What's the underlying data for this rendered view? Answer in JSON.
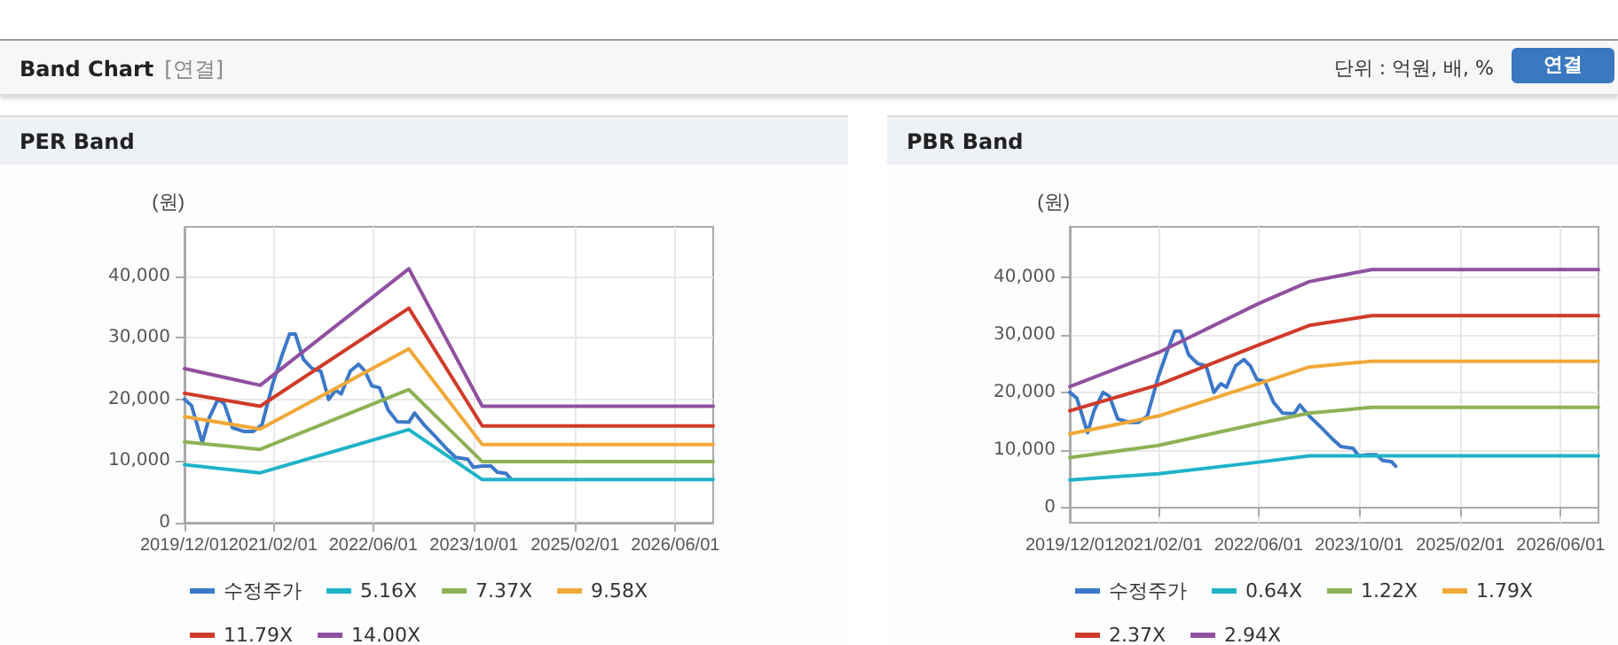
{
  "chart_data": [
    {
      "type": "line",
      "title": "PER Band",
      "ylabel": "(원)",
      "annotations": [
        "Band Chart",
        "[연결]",
        "단위 : 억원, 배, %",
        "연결"
      ],
      "xlim": [
        "2019-12-01",
        "2026-12-01"
      ],
      "xticks": [
        {
          "value": "2019-12-01",
          "label": "2019/12/01"
        },
        {
          "value": "2021-02-01",
          "label": "2021/02/01"
        },
        {
          "value": "2022-06-01",
          "label": "2022/06/01"
        },
        {
          "value": "2023-10-01",
          "label": "2023/10/01"
        },
        {
          "value": "2025-02-01",
          "label": "2025/02/01"
        },
        {
          "value": "2026-06-01",
          "label": "2026/06/01"
        }
      ],
      "ylim": [
        0,
        48000
      ],
      "yticks": [
        {
          "value": 0,
          "label": "0"
        },
        {
          "value": 10000,
          "label": "10,000"
        },
        {
          "value": 20000,
          "label": "20,000"
        },
        {
          "value": 30000,
          "label": "30,000"
        },
        {
          "value": 40000,
          "label": "40,000"
        }
      ],
      "grid": true,
      "legend": "bottom",
      "marker": "none",
      "line_style": "solid",
      "series": [
        {
          "name": "수정주가",
          "color": "#3c78c8",
          "x": [
            "2019-12-01",
            "2020-01-04",
            "2020-02-25",
            "2020-03-28",
            "2020-05-10",
            "2020-06-10",
            "2020-07-20",
            "2020-09-15",
            "2020-10-28",
            "2020-12-10",
            "2021-02-01",
            "2021-03-20",
            "2021-04-22",
            "2021-05-20",
            "2021-06-28",
            "2021-08-10",
            "2021-09-20",
            "2021-10-28",
            "2021-12-01",
            "2021-12-28",
            "2022-02-10",
            "2022-03-22",
            "2022-04-22",
            "2022-05-25",
            "2022-07-01",
            "2022-08-12",
            "2022-09-25",
            "2022-11-20",
            "2022-12-18",
            "2023-02-01",
            "2023-03-28",
            "2023-05-22",
            "2023-07-04",
            "2023-09-01",
            "2023-09-28",
            "2023-11-10",
            "2023-12-22",
            "2024-01-22",
            "2024-03-04",
            "2024-03-25"
          ],
          "values": [
            20000,
            19000,
            13000,
            16900,
            20000,
            19300,
            15400,
            14800,
            14800,
            15900,
            22700,
            27500,
            30600,
            30600,
            26500,
            25000,
            24600,
            20000,
            21500,
            20900,
            24600,
            25700,
            24600,
            22200,
            21900,
            18300,
            16400,
            16300,
            17800,
            15900,
            14000,
            12000,
            10600,
            10300,
            9000,
            9200,
            9200,
            8200,
            8000,
            7200
          ]
        },
        {
          "name": "5.16X",
          "color": "#1fb3c8",
          "x": [
            "2019-12-01",
            "2020-12-01",
            "2022-11-20",
            "2023-11-10",
            "2026-12-01"
          ],
          "values": [
            9400,
            8100,
            15100,
            7000,
            7000
          ]
        },
        {
          "name": "7.37X",
          "color": "#8db255",
          "x": [
            "2019-12-01",
            "2020-12-01",
            "2022-11-20",
            "2023-11-10",
            "2026-12-01"
          ],
          "values": [
            13100,
            11900,
            21600,
            9900,
            9900
          ]
        },
        {
          "name": "9.58X",
          "color": "#f0a838",
          "x": [
            "2019-12-01",
            "2020-12-01",
            "2022-11-20",
            "2023-11-10",
            "2026-12-01"
          ],
          "values": [
            17200,
            15200,
            28200,
            12700,
            12700
          ]
        },
        {
          "name": "11.79X",
          "color": "#d03a2a",
          "x": [
            "2019-12-01",
            "2020-12-01",
            "2022-11-20",
            "2023-11-10",
            "2026-12-01"
          ],
          "values": [
            21000,
            18900,
            34800,
            15700,
            15700
          ]
        },
        {
          "name": "14.00X",
          "color": "#9050a0",
          "x": [
            "2019-12-01",
            "2020-12-01",
            "2022-11-20",
            "2023-11-10",
            "2026-12-01"
          ],
          "values": [
            25000,
            22300,
            41200,
            18900,
            18900
          ]
        }
      ]
    },
    {
      "type": "line",
      "title": "PBR Band",
      "ylabel": "(원)",
      "xlim": [
        "2019-12-01",
        "2026-12-01"
      ],
      "xticks": [
        {
          "value": "2019-12-01",
          "label": "2019/12/01"
        },
        {
          "value": "2021-02-01",
          "label": "2021/02/01"
        },
        {
          "value": "2022-06-01",
          "label": "2022/06/01"
        },
        {
          "value": "2023-10-01",
          "label": "2023/10/01"
        },
        {
          "value": "2025-02-01",
          "label": "2025/02/01"
        },
        {
          "value": "2026-06-01",
          "label": "2026/06/01"
        }
      ],
      "ylim": [
        -2600,
        48700
      ],
      "yticks": [
        {
          "value": 0,
          "label": "0"
        },
        {
          "value": 10000,
          "label": "10,000"
        },
        {
          "value": 20000,
          "label": "20,000"
        },
        {
          "value": 30000,
          "label": "30,000"
        },
        {
          "value": 40000,
          "label": "40,000"
        }
      ],
      "grid": true,
      "legend": "bottom",
      "marker": "none",
      "line_style": "solid",
      "series": [
        {
          "name": "수정주가",
          "color": "#3c78c8",
          "x": [
            "2019-12-01",
            "2020-01-04",
            "2020-02-25",
            "2020-03-28",
            "2020-05-10",
            "2020-06-10",
            "2020-07-20",
            "2020-09-15",
            "2020-10-28",
            "2020-12-10",
            "2021-02-01",
            "2021-03-20",
            "2021-04-22",
            "2021-05-20",
            "2021-06-28",
            "2021-08-10",
            "2021-09-20",
            "2021-10-28",
            "2021-12-01",
            "2021-12-28",
            "2022-02-10",
            "2022-03-22",
            "2022-04-22",
            "2022-05-25",
            "2022-07-01",
            "2022-08-12",
            "2022-09-25",
            "2022-11-20",
            "2022-12-18",
            "2023-02-01",
            "2023-03-28",
            "2023-05-22",
            "2023-07-04",
            "2023-09-01",
            "2023-09-28",
            "2023-11-10",
            "2023-12-22",
            "2024-01-22",
            "2024-03-04",
            "2024-03-25"
          ],
          "values": [
            20000,
            19000,
            13000,
            16900,
            20000,
            19300,
            15400,
            14800,
            14800,
            15900,
            22700,
            27500,
            30600,
            30600,
            26500,
            25000,
            24600,
            20000,
            21500,
            20900,
            24600,
            25700,
            24600,
            22200,
            21900,
            18300,
            16400,
            16300,
            17800,
            15900,
            14000,
            12000,
            10600,
            10300,
            9000,
            9200,
            9200,
            8200,
            8000,
            7200
          ]
        },
        {
          "name": "0.64X",
          "color": "#1fb3c8",
          "x": [
            "2019-12-01",
            "2021-02-01",
            "2022-06-01",
            "2023-02-01",
            "2023-12-01",
            "2026-12-01"
          ],
          "values": [
            4800,
            5900,
            7900,
            9000,
            9000,
            9000
          ]
        },
        {
          "name": "1.22X",
          "color": "#8db255",
          "x": [
            "2019-12-01",
            "2021-02-01",
            "2022-06-01",
            "2023-02-01",
            "2023-12-01",
            "2026-12-01"
          ],
          "values": [
            8700,
            10800,
            14600,
            16400,
            17400,
            17400
          ]
        },
        {
          "name": "1.79X",
          "color": "#f0a838",
          "x": [
            "2019-12-01",
            "2021-02-01",
            "2022-06-01",
            "2023-02-01",
            "2023-12-01",
            "2026-12-01"
          ],
          "values": [
            12800,
            15900,
            21500,
            24400,
            25400,
            25400
          ]
        },
        {
          "name": "2.37X",
          "color": "#d03a2a",
          "x": [
            "2019-12-01",
            "2021-02-01",
            "2022-06-01",
            "2023-02-01",
            "2023-12-01",
            "2026-12-01"
          ],
          "values": [
            16800,
            21300,
            28200,
            31600,
            33300,
            33300
          ]
        },
        {
          "name": "2.94X",
          "color": "#9050a0",
          "x": [
            "2019-12-01",
            "2021-02-01",
            "2022-06-01",
            "2023-02-01",
            "2023-12-01",
            "2026-12-01"
          ],
          "values": [
            21000,
            26900,
            35400,
            39200,
            41300,
            41300
          ]
        }
      ]
    }
  ]
}
